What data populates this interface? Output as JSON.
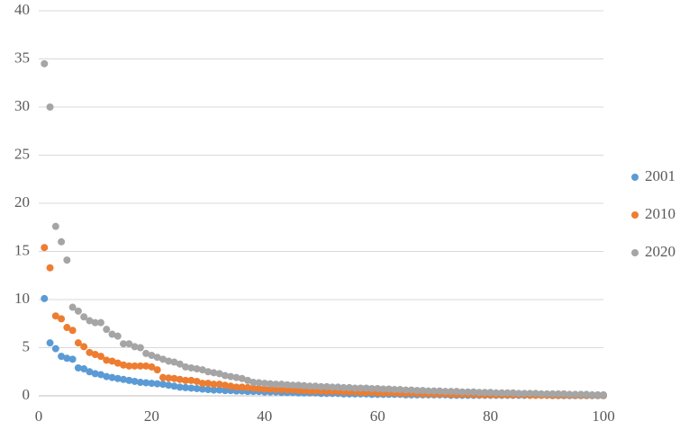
{
  "chart_data": {
    "type": "scatter",
    "x": [
      1,
      2,
      3,
      4,
      5,
      6,
      7,
      8,
      9,
      10,
      11,
      12,
      13,
      14,
      15,
      16,
      17,
      18,
      19,
      20,
      21,
      22,
      23,
      24,
      25,
      26,
      27,
      28,
      29,
      30,
      31,
      32,
      33,
      34,
      35,
      36,
      37,
      38,
      39,
      40,
      41,
      42,
      43,
      44,
      45,
      46,
      47,
      48,
      49,
      50,
      51,
      52,
      53,
      54,
      55,
      56,
      57,
      58,
      59,
      60,
      61,
      62,
      63,
      64,
      65,
      66,
      67,
      68,
      69,
      70,
      71,
      72,
      73,
      74,
      75,
      76,
      77,
      78,
      79,
      80,
      81,
      82,
      83,
      84,
      85,
      86,
      87,
      88,
      89,
      90,
      91,
      92,
      93,
      94,
      95,
      96,
      97,
      98,
      99,
      100
    ],
    "series": [
      {
        "name": "2001",
        "color": "#5b9bd5",
        "values": [
          10.1,
          5.5,
          4.9,
          4.1,
          3.9,
          3.8,
          2.9,
          2.8,
          2.5,
          2.3,
          2.2,
          2.0,
          1.9,
          1.8,
          1.7,
          1.6,
          1.5,
          1.4,
          1.35,
          1.3,
          1.25,
          1.2,
          1.1,
          1.0,
          0.9,
          0.85,
          0.8,
          0.75,
          0.7,
          0.65,
          0.6,
          0.6,
          0.55,
          0.55,
          0.5,
          0.5,
          0.45,
          0.45,
          0.45,
          0.4,
          0.4,
          0.4,
          0.35,
          0.35,
          0.35,
          0.3,
          0.3,
          0.3,
          0.3,
          0.25,
          0.25,
          0.25,
          0.25,
          0.2,
          0.2,
          0.2,
          0.2,
          0.2,
          0.15,
          0.15,
          0.15,
          0.15,
          0.15,
          0.15,
          0.1,
          0.1,
          0.1,
          0.1,
          0.1,
          0.1,
          0.1,
          0.1,
          0.05,
          0.05,
          0.05,
          0.05,
          0.05,
          0.05,
          0.05,
          0.05,
          0.05,
          0.05,
          0.05,
          0.05,
          0.05,
          0.05,
          0.05,
          0.05,
          0.05,
          0.05,
          0.02,
          0.02,
          0.02,
          0.02,
          0.02,
          0.02,
          0.02,
          0.02,
          0.02,
          0.02
        ]
      },
      {
        "name": "2010",
        "color": "#ed7d31",
        "values": [
          15.4,
          13.3,
          8.3,
          8.0,
          7.1,
          6.8,
          5.5,
          5.1,
          4.5,
          4.3,
          4.1,
          3.7,
          3.6,
          3.4,
          3.2,
          3.1,
          3.1,
          3.1,
          3.1,
          3.0,
          2.7,
          1.9,
          1.85,
          1.8,
          1.7,
          1.6,
          1.6,
          1.5,
          1.3,
          1.3,
          1.2,
          1.2,
          1.1,
          1.0,
          0.9,
          0.9,
          0.85,
          0.8,
          0.75,
          0.7,
          0.7,
          0.65,
          0.65,
          0.6,
          0.6,
          0.55,
          0.55,
          0.5,
          0.5,
          0.5,
          0.45,
          0.45,
          0.45,
          0.4,
          0.4,
          0.4,
          0.35,
          0.35,
          0.35,
          0.3,
          0.3,
          0.3,
          0.3,
          0.25,
          0.25,
          0.25,
          0.25,
          0.2,
          0.2,
          0.2,
          0.2,
          0.2,
          0.15,
          0.15,
          0.15,
          0.15,
          0.15,
          0.1,
          0.1,
          0.1,
          0.1,
          0.1,
          0.1,
          0.1,
          0.1,
          0.1,
          0.05,
          0.05,
          0.05,
          0.05,
          0.05,
          0.05,
          0.05,
          0.05,
          0.05,
          0.05,
          0.05,
          0.05,
          0.05,
          0.05
        ]
      },
      {
        "name": "2020",
        "color": "#a5a5a5",
        "values": [
          34.5,
          30.0,
          17.6,
          16.0,
          14.1,
          9.2,
          8.8,
          8.2,
          7.8,
          7.6,
          7.6,
          6.9,
          6.4,
          6.2,
          5.4,
          5.4,
          5.1,
          5.0,
          4.4,
          4.2,
          4.0,
          3.8,
          3.6,
          3.5,
          3.3,
          3.0,
          2.9,
          2.8,
          2.7,
          2.5,
          2.4,
          2.3,
          2.1,
          2.0,
          1.9,
          1.8,
          1.6,
          1.4,
          1.35,
          1.3,
          1.25,
          1.2,
          1.2,
          1.15,
          1.1,
          1.1,
          1.05,
          1.0,
          1.0,
          0.95,
          0.95,
          0.9,
          0.9,
          0.85,
          0.85,
          0.8,
          0.8,
          0.8,
          0.75,
          0.75,
          0.7,
          0.7,
          0.65,
          0.65,
          0.6,
          0.6,
          0.55,
          0.55,
          0.5,
          0.5,
          0.5,
          0.45,
          0.45,
          0.45,
          0.4,
          0.4,
          0.4,
          0.35,
          0.35,
          0.35,
          0.3,
          0.3,
          0.3,
          0.3,
          0.25,
          0.25,
          0.25,
          0.25,
          0.2,
          0.2,
          0.2,
          0.2,
          0.2,
          0.15,
          0.15,
          0.15,
          0.15,
          0.1,
          0.1,
          0.1
        ]
      }
    ],
    "xlim": [
      0,
      100
    ],
    "xticks": [
      0,
      20,
      40,
      60,
      80,
      100
    ],
    "ylim": [
      0,
      40
    ],
    "yticks": [
      0,
      5,
      10,
      15,
      20,
      25,
      30,
      35,
      40
    ],
    "grid": true,
    "legend": "right"
  }
}
